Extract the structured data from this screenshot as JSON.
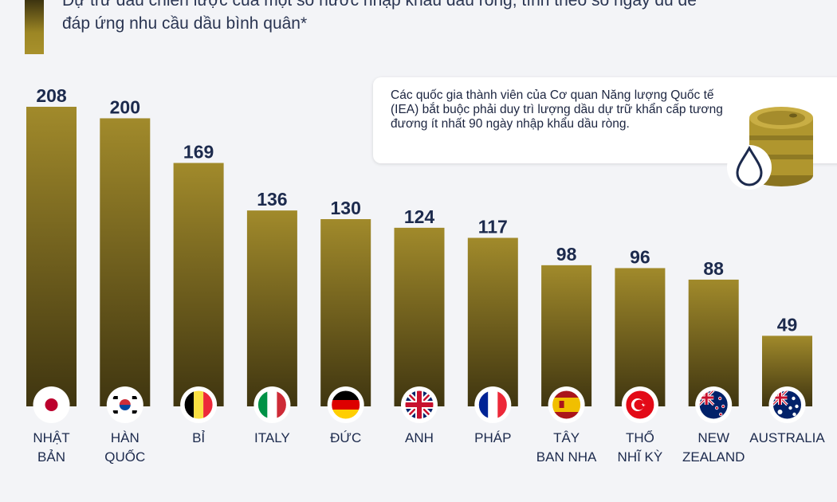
{
  "subtitle": {
    "line1": "Dự trữ dầu chiến lược của một số nước nhập khẩu dầu ròng, tính theo số ngày đủ để",
    "line2": "đáp ứng nhu cầu dầu bình quân*"
  },
  "note": {
    "text": "Các quốc gia thành viên của Cơ quan Năng lượng Quốc tế (IEA) bắt buộc phải duy trì lượng dầu dự trữ khẩn cấp tương đương ít nhất 90 ngày nhập khẩu dầu ròng.",
    "icon": "oil-barrel-icon"
  },
  "colors": {
    "bar_top": "#a18a2b",
    "bar_bottom": "#3f3510",
    "text": "#1c2a4d",
    "background": "#f3f4f7"
  },
  "chart_data": {
    "type": "bar",
    "title": "Dự trữ dầu chiến lược của một số nước nhập khẩu dầu ròng, tính theo số ngày đủ để đáp ứng nhu cầu dầu bình quân*",
    "categories": [
      [
        "NHẬT",
        "BẢN"
      ],
      [
        "HÀN",
        "QUỐC"
      ],
      [
        "BỈ"
      ],
      [
        "ITALY"
      ],
      [
        "ĐỨC"
      ],
      [
        "ANH"
      ],
      [
        "PHÁP"
      ],
      [
        "TÂY",
        "BAN NHA"
      ],
      [
        "THỔ",
        "NHĨ KỲ"
      ],
      [
        "NEW",
        "ZEALAND"
      ],
      [
        "AUSTRALIA"
      ]
    ],
    "flags": [
      "japan",
      "south-korea",
      "belgium",
      "italy",
      "germany",
      "uk",
      "france",
      "spain",
      "turkey",
      "new-zealand",
      "australia"
    ],
    "values": [
      208,
      200,
      169,
      136,
      130,
      124,
      117,
      98,
      96,
      88,
      49
    ],
    "ylim": [
      0,
      208
    ],
    "xlabel": "",
    "ylabel": "",
    "grid": false
  }
}
